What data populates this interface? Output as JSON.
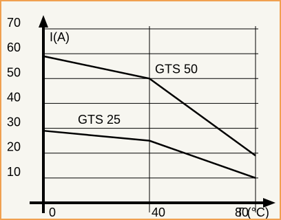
{
  "chart_data": {
    "type": "line",
    "x": [
      0,
      40,
      80
    ],
    "xticks": [
      "0",
      "40",
      "80"
    ],
    "yticks": [
      "10",
      "20",
      "30",
      "40",
      "50",
      "60",
      "70"
    ],
    "xlabel": "T (°C)",
    "ylabel": "I(A)",
    "xlim": [
      0,
      80
    ],
    "ylim": [
      0,
      70
    ],
    "grid": true,
    "series": [
      {
        "name": "GTS 50",
        "values": [
          59,
          50,
          19
        ]
      },
      {
        "name": "GTS 25",
        "values": [
          29,
          25,
          10
        ]
      }
    ]
  },
  "colors": {
    "frame_border": "#f0a050",
    "background": "#f7f6f0",
    "ink": "#000000"
  }
}
